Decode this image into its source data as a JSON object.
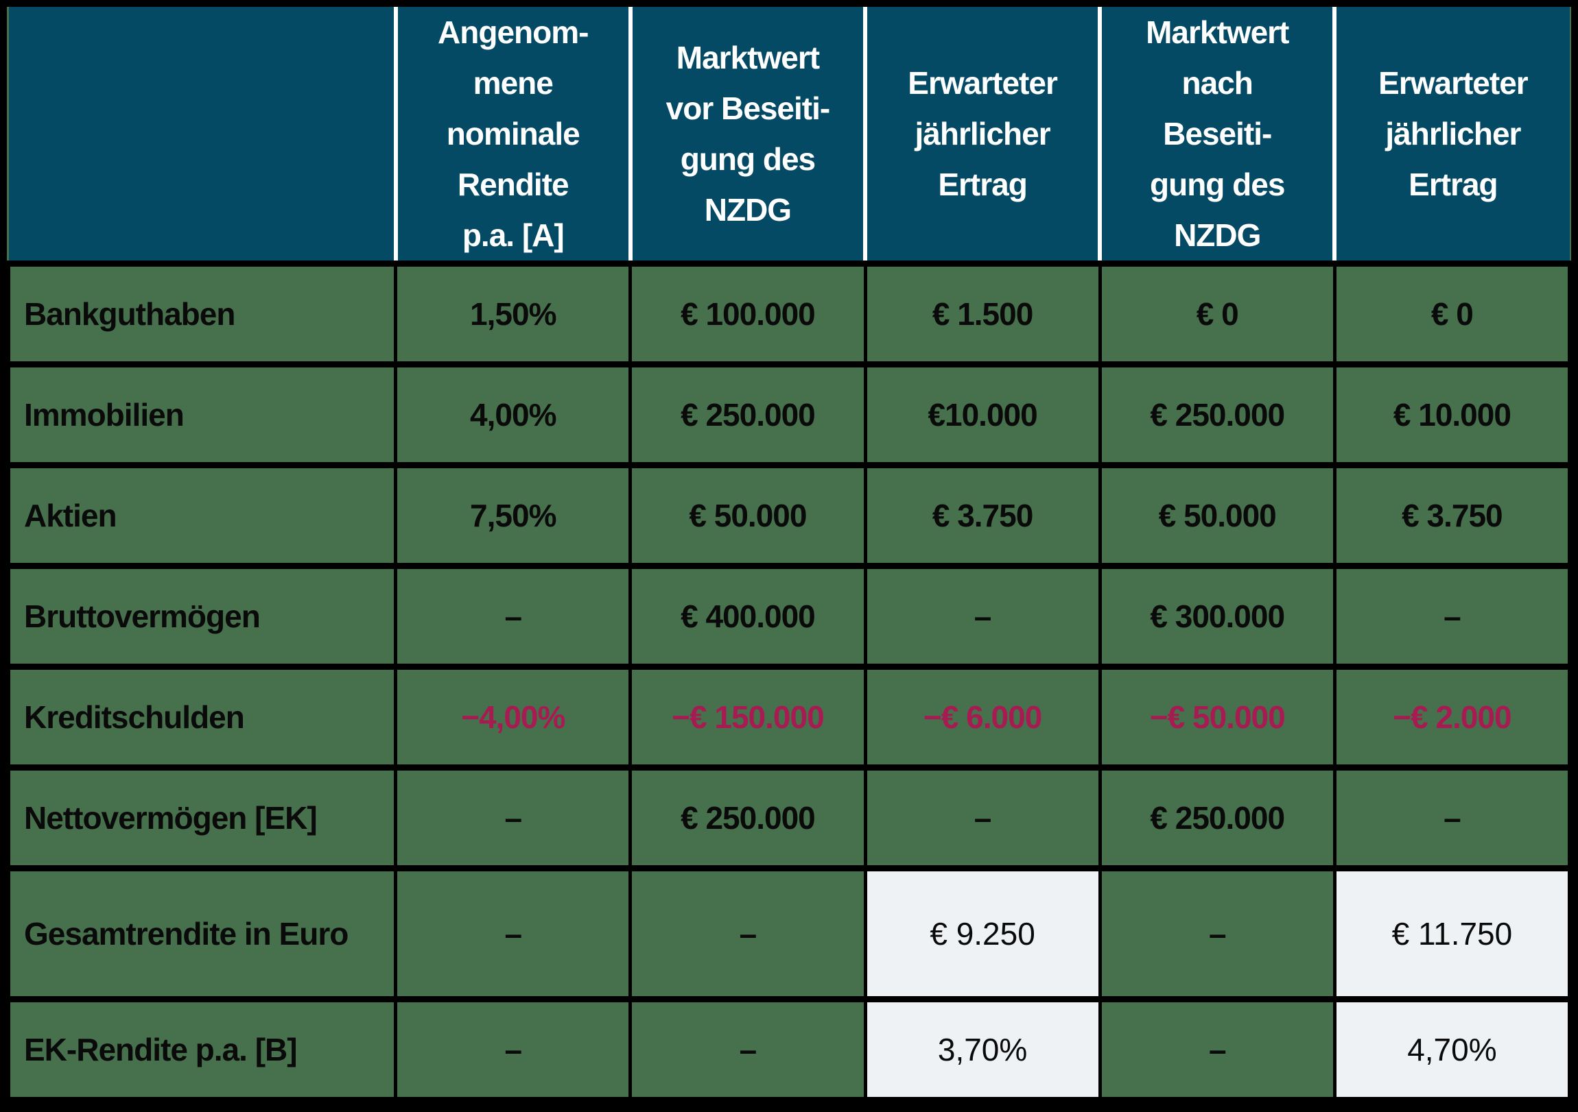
{
  "colors": {
    "page_bg": "#ffffff",
    "border": "#000000",
    "header_bg": "#054a64",
    "header_text": "#ffffff",
    "header_sep": "#ffffff",
    "body_bg": "#47704c",
    "body_text": "#0a0a0a",
    "negative": "#a81b52",
    "highlight_bg": "#eef2f5"
  },
  "table": {
    "header": {
      "corner": "",
      "columns": [
        "Angenom-\nmene\nnominale\nRendite\np.a. [A]",
        "Marktwert\nvor Beseiti-\ngung des\nNZDG",
        "Erwarteter\njährlicher\nErtrag",
        "Marktwert\nnach\nBeseiti-\ngung des\nNZDG",
        "Erwarteter\njährlicher\nErtrag"
      ]
    },
    "rows": [
      {
        "label": "Bankguthaben",
        "values": [
          "1,50%",
          "€ 100.000",
          "€ 1.500",
          "€ 0",
          "€ 0"
        ]
      },
      {
        "label": "Immobilien",
        "values": [
          "4,00%",
          "€ 250.000",
          "€10.000",
          "€ 250.000",
          "€ 10.000"
        ]
      },
      {
        "label": "Aktien",
        "values": [
          "7,50%",
          "€ 50.000",
          "€ 3.750",
          "€ 50.000",
          "€ 3.750"
        ]
      },
      {
        "label": "Bruttovermögen",
        "values": [
          "–",
          "€ 400.000",
          "–",
          "€ 300.000",
          "–"
        ]
      },
      {
        "label": "Kreditschulden",
        "negative": true,
        "values": [
          "−4,00%",
          "−€ 150.000",
          "−€ 6.000",
          "−€ 50.000",
          "−€ 2.000"
        ]
      },
      {
        "label": "Nettovermögen [EK]",
        "values": [
          "–",
          "€ 250.000",
          "–",
          "€ 250.000",
          "–"
        ]
      },
      {
        "label": "Gesamtrendite in Euro",
        "highlight_cols": [
          2,
          4
        ],
        "values": [
          "–",
          "–",
          "€ 9.250",
          "–",
          "€ 11.750"
        ]
      },
      {
        "label": "EK-Rendite p.a. [B]",
        "highlight_cols": [
          2,
          4
        ],
        "values": [
          "–",
          "–",
          "3,70%",
          "–",
          "4,70%"
        ]
      }
    ]
  }
}
